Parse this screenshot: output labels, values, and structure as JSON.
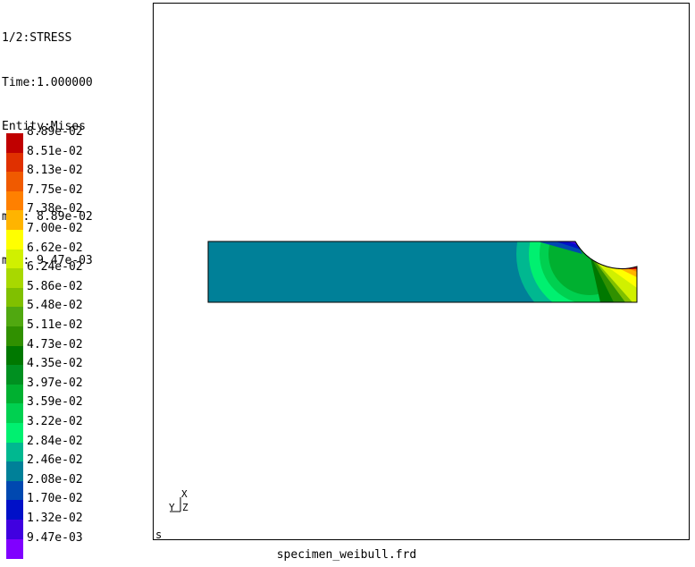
{
  "header": {
    "step": "1/2:STRESS",
    "time": "Time:1.000000",
    "entity": "Entity:Mises",
    "max": "max: 8.89e-02",
    "min": "min: 9.47e-03"
  },
  "legend": [
    {
      "label": "8.89e-02",
      "color": "#c00000"
    },
    {
      "label": "8.51e-02",
      "color": "#e03000"
    },
    {
      "label": "8.13e-02",
      "color": "#f05a00"
    },
    {
      "label": "7.75e-02",
      "color": "#ff8000"
    },
    {
      "label": "7.38e-02",
      "color": "#ffb400"
    },
    {
      "label": "7.00e-02",
      "color": "#ffff00"
    },
    {
      "label": "6.62e-02",
      "color": "#d0f000"
    },
    {
      "label": "6.24e-02",
      "color": "#a8d800"
    },
    {
      "label": "5.86e-02",
      "color": "#80c000"
    },
    {
      "label": "5.48e-02",
      "color": "#50a810"
    },
    {
      "label": "5.11e-02",
      "color": "#309000"
    },
    {
      "label": "4.73e-02",
      "color": "#007800"
    },
    {
      "label": "4.35e-02",
      "color": "#009020"
    },
    {
      "label": "3.97e-02",
      "color": "#00b030"
    },
    {
      "label": "3.59e-02",
      "color": "#00d050"
    },
    {
      "label": "3.22e-02",
      "color": "#00f070"
    },
    {
      "label": "2.84e-02",
      "color": "#00b890"
    },
    {
      "label": "2.46e-02",
      "color": "#008098"
    },
    {
      "label": "2.08e-02",
      "color": "#0048b0"
    },
    {
      "label": "1.70e-02",
      "color": "#0010c8"
    },
    {
      "label": "1.32e-02",
      "color": "#4000e0"
    },
    {
      "label": "9.47e-03",
      "color": "#8000ff"
    }
  ],
  "viewport": {
    "corner_label": "s",
    "axis_x": "X",
    "axis_y": "Y",
    "axis_z": "Z"
  },
  "filename": "specimen_weibull.frd"
}
